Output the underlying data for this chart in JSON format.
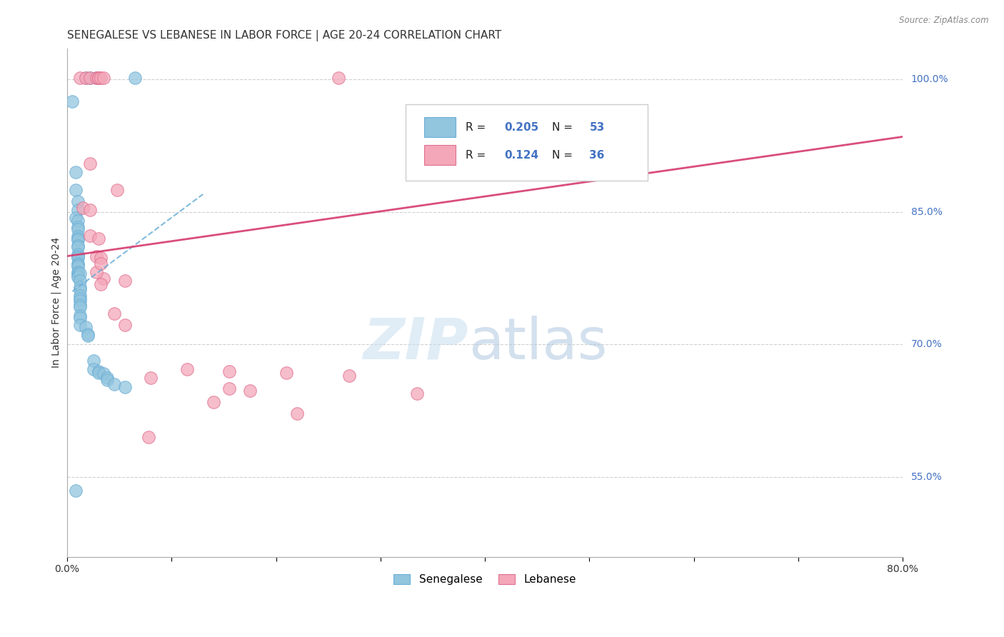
{
  "title": "SENEGALESE VS LEBANESE IN LABOR FORCE | AGE 20-24 CORRELATION CHART",
  "source": "Source: ZipAtlas.com",
  "ylabel": "In Labor Force | Age 20-24",
  "ytick_labels": [
    "55.0%",
    "70.0%",
    "85.0%",
    "100.0%"
  ],
  "ytick_values": [
    0.55,
    0.7,
    0.85,
    1.0
  ],
  "xmin": 0.0,
  "xmax": 0.8,
  "ymin": 0.46,
  "ymax": 1.035,
  "watermark_zip": "ZIP",
  "watermark_atlas": "atlas",
  "legend_blue_R": "0.205",
  "legend_blue_N": "53",
  "legend_pink_R": "0.124",
  "legend_pink_N": "36",
  "blue_color": "#92c5de",
  "blue_edge_color": "#6baed6",
  "pink_color": "#f4a7b9",
  "pink_edge_color": "#e07090",
  "blue_scatter": [
    [
      0.005,
      0.975
    ],
    [
      0.018,
      1.002
    ],
    [
      0.022,
      1.002
    ],
    [
      0.028,
      1.002
    ],
    [
      0.008,
      0.895
    ],
    [
      0.008,
      0.875
    ],
    [
      0.01,
      0.862
    ],
    [
      0.01,
      0.852
    ],
    [
      0.008,
      0.843
    ],
    [
      0.01,
      0.84
    ],
    [
      0.01,
      0.833
    ],
    [
      0.01,
      0.83
    ],
    [
      0.01,
      0.822
    ],
    [
      0.01,
      0.82
    ],
    [
      0.01,
      0.818
    ],
    [
      0.01,
      0.812
    ],
    [
      0.01,
      0.81
    ],
    [
      0.01,
      0.802
    ],
    [
      0.01,
      0.8
    ],
    [
      0.01,
      0.798
    ],
    [
      0.01,
      0.792
    ],
    [
      0.01,
      0.79
    ],
    [
      0.01,
      0.788
    ],
    [
      0.01,
      0.782
    ],
    [
      0.01,
      0.78
    ],
    [
      0.01,
      0.778
    ],
    [
      0.01,
      0.776
    ],
    [
      0.012,
      0.78
    ],
    [
      0.012,
      0.772
    ],
    [
      0.012,
      0.765
    ],
    [
      0.012,
      0.762
    ],
    [
      0.012,
      0.755
    ],
    [
      0.012,
      0.752
    ],
    [
      0.012,
      0.75
    ],
    [
      0.012,
      0.745
    ],
    [
      0.012,
      0.742
    ],
    [
      0.012,
      0.733
    ],
    [
      0.012,
      0.73
    ],
    [
      0.012,
      0.722
    ],
    [
      0.018,
      0.72
    ],
    [
      0.02,
      0.712
    ],
    [
      0.02,
      0.71
    ],
    [
      0.025,
      0.682
    ],
    [
      0.025,
      0.672
    ],
    [
      0.03,
      0.67
    ],
    [
      0.03,
      0.668
    ],
    [
      0.035,
      0.667
    ],
    [
      0.038,
      0.662
    ],
    [
      0.038,
      0.66
    ],
    [
      0.045,
      0.655
    ],
    [
      0.055,
      0.652
    ],
    [
      0.008,
      0.535
    ],
    [
      0.065,
      1.002
    ]
  ],
  "pink_scatter": [
    [
      0.012,
      1.002
    ],
    [
      0.018,
      1.002
    ],
    [
      0.022,
      1.002
    ],
    [
      0.028,
      1.002
    ],
    [
      0.03,
      1.002
    ],
    [
      0.03,
      1.002
    ],
    [
      0.03,
      1.002
    ],
    [
      0.032,
      1.002
    ],
    [
      0.035,
      1.002
    ],
    [
      0.26,
      1.002
    ],
    [
      0.022,
      0.905
    ],
    [
      0.048,
      0.875
    ],
    [
      0.015,
      0.855
    ],
    [
      0.022,
      0.852
    ],
    [
      0.022,
      0.823
    ],
    [
      0.03,
      0.82
    ],
    [
      0.028,
      0.8
    ],
    [
      0.032,
      0.798
    ],
    [
      0.035,
      0.775
    ],
    [
      0.055,
      0.772
    ],
    [
      0.045,
      0.735
    ],
    [
      0.055,
      0.722
    ],
    [
      0.115,
      0.672
    ],
    [
      0.155,
      0.67
    ],
    [
      0.21,
      0.668
    ],
    [
      0.27,
      0.665
    ],
    [
      0.08,
      0.662
    ],
    [
      0.155,
      0.65
    ],
    [
      0.175,
      0.648
    ],
    [
      0.335,
      0.645
    ],
    [
      0.14,
      0.635
    ],
    [
      0.22,
      0.622
    ],
    [
      0.078,
      0.595
    ],
    [
      0.028,
      0.782
    ],
    [
      0.032,
      0.768
    ],
    [
      0.032,
      0.792
    ]
  ],
  "blue_trend_x": [
    0.005,
    0.13
  ],
  "blue_trend_y": [
    0.76,
    0.87
  ],
  "pink_trend_x": [
    0.0,
    0.8
  ],
  "pink_trend_y": [
    0.8,
    0.935
  ],
  "grid_color": "#d0d0d0",
  "grid_linestyle": "--",
  "title_fontsize": 11,
  "axis_label_fontsize": 10,
  "tick_fontsize": 10
}
